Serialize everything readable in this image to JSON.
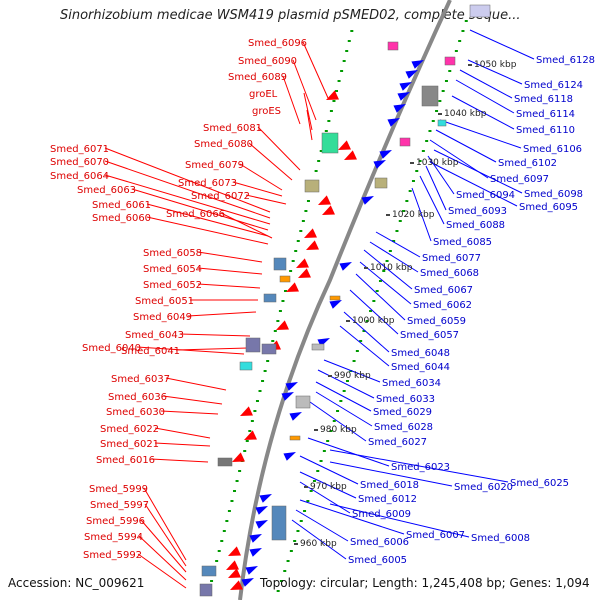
{
  "title": "Sinorhizobium medicae WSM419 plasmid pSMED02, complete seque...",
  "accession": "Accession: NC_009621",
  "topology": "Topology: circular; Length: 1,245,408 bp; Genes: 1,094",
  "colors": {
    "forward": "#ff0000",
    "reverse": "#0000ff",
    "label_forward": "#dd0000",
    "label_reverse": "#0000cc",
    "backbone": "#999999",
    "dots": "#009900",
    "cog_cyan": "#33dddd",
    "cog_olive": "#b8b07a",
    "cog_purple": "#7777aa",
    "cog_steel": "#5588bb",
    "cog_orange": "#ff9900",
    "cog_pink": "#ff33aa",
    "cog_grey": "#bbbbbb",
    "cog_green": "#33dd99"
  },
  "kbp_ticks": [
    "1050 kbp",
    "1040 kbp",
    "1030 kbp",
    "1020 kbp",
    "1010 kbp",
    "1000 kbp",
    "990 kbp",
    "980 kbp",
    "970 kbp",
    "960 kbp"
  ],
  "forward_genes": [
    "Smed_6096",
    "Smed_6090",
    "Smed_6089",
    "groEL",
    "groES",
    "Smed_6081",
    "Smed_6080",
    "Smed_6079",
    "Smed_6073",
    "Smed_6072",
    "Smed_6071",
    "Smed_6070",
    "Smed_6064",
    "Smed_6063",
    "Smed_6061",
    "Smed_6066",
    "Smed_6060",
    "Smed_6058",
    "Smed_6054",
    "Smed_6052",
    "Smed_6051",
    "Smed_6049",
    "Smed_6043",
    "Smed_6040",
    "Smed_6041",
    "Smed_6037",
    "Smed_6036",
    "Smed_6030",
    "Smed_6022",
    "Smed_6021",
    "Smed_6016",
    "Smed_5999",
    "Smed_5997",
    "Smed_5996",
    "Smed_5994",
    "Smed_5992"
  ],
  "reverse_genes": [
    "Smed_6128",
    "Smed_6124",
    "Smed_6118",
    "Smed_6114",
    "Smed_6110",
    "Smed_6106",
    "Smed_6102",
    "Smed_6097",
    "Smed_6098",
    "Smed_6094",
    "Smed_6095",
    "Smed_6093",
    "Smed_6088",
    "Smed_6085",
    "Smed_6077",
    "Smed_6068",
    "Smed_6067",
    "Smed_6062",
    "Smed_6059",
    "Smed_6057",
    "Smed_6048",
    "Smed_6044",
    "Smed_6034",
    "Smed_6033",
    "Smed_6029",
    "Smed_6028",
    "Smed_6027",
    "Smed_6023",
    "Smed_6025",
    "Smed_6018",
    "Smed_6020",
    "Smed_6012",
    "Smed_6009",
    "Smed_6007",
    "Smed_6008",
    "Smed_6006",
    "Smed_6005"
  ]
}
